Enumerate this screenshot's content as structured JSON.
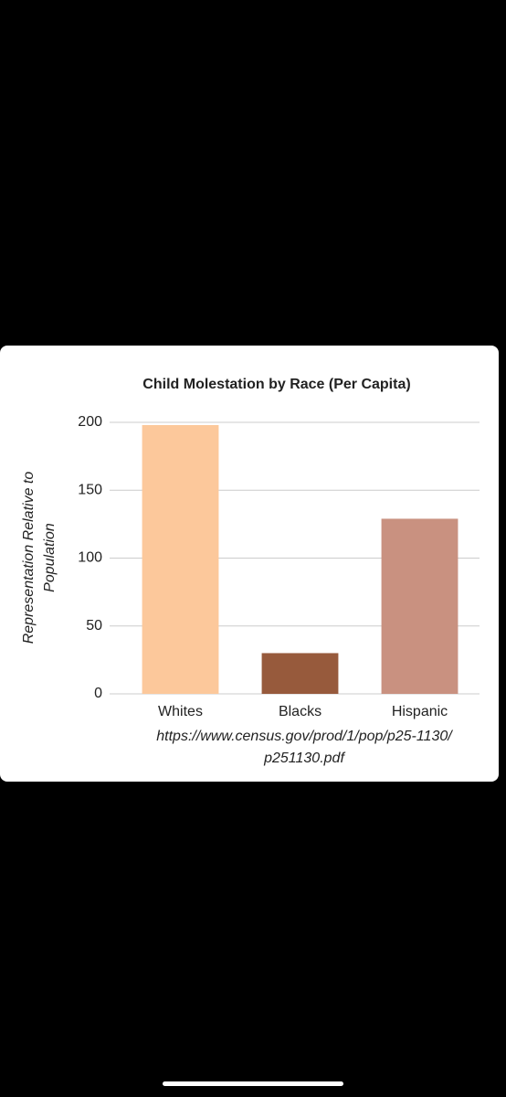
{
  "chart_data": {
    "type": "bar",
    "title": "Child Molestation by Race (Per Capita)",
    "y_label_lines": [
      "Representation Relative to",
      "Population"
    ],
    "source_lines": [
      "https://www.census.gov/prod/1/pop/p25-1130/",
      "p251130.pdf"
    ],
    "categories": [
      "Whites",
      "Blacks",
      "Hispanic"
    ],
    "values": [
      198,
      30,
      129
    ],
    "colors": [
      "#fcc89b",
      "#975a3c",
      "#c99180"
    ],
    "ylim": [
      0,
      200
    ],
    "yticks": [
      0,
      50,
      100,
      150,
      200
    ],
    "grid": true
  }
}
